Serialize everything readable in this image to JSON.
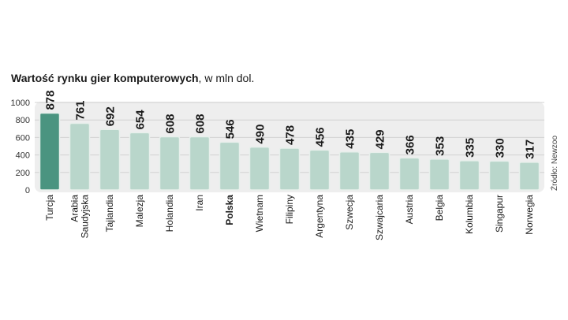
{
  "title_bold": "Wartość rynku gier komputerowych",
  "title_rest": ", w mln dol.",
  "source": "Źródło: Newzoo",
  "colors": {
    "highlight": "#4a9480",
    "bar": "#b9d6cb",
    "bar_border": "#e7efeb",
    "band": "#eeeeee",
    "grid": "#d2d2d2"
  },
  "chart_data": {
    "type": "bar",
    "title": "Wartość rynku gier komputerowych, w mln dol.",
    "categories": [
      [
        "Turcja"
      ],
      [
        "Arabia",
        "Saudyjska"
      ],
      [
        "Tajlandia"
      ],
      [
        "Malezja"
      ],
      [
        "Holandia"
      ],
      [
        "Iran"
      ],
      [
        "Polska"
      ],
      [
        "Wietnam"
      ],
      [
        "Filipiny"
      ],
      [
        "Argentyna"
      ],
      [
        "Szwecja"
      ],
      [
        "Szwajcaria"
      ],
      [
        "Austria"
      ],
      [
        "Belgia"
      ],
      [
        "Kolumbia"
      ],
      [
        "Singapur"
      ],
      [
        "Norwegia"
      ]
    ],
    "values": [
      878,
      761,
      692,
      654,
      608,
      608,
      546,
      490,
      478,
      456,
      435,
      429,
      366,
      353,
      335,
      330,
      317
    ],
    "value_labels": [
      "878",
      "761",
      "692",
      "654",
      "608",
      "608",
      "546",
      "490",
      "478",
      "456",
      "435",
      "429",
      "366",
      "353",
      "335",
      "330",
      "317"
    ],
    "highlight_index": 0,
    "bold_category_index": 6,
    "yticks": [
      0,
      200,
      400,
      600,
      800,
      1000
    ],
    "ytick_labels": [
      "0",
      "200",
      "400",
      "600",
      "800",
      "1000"
    ],
    "ylim": [
      0,
      1000
    ],
    "grid": true,
    "legend": "none"
  }
}
